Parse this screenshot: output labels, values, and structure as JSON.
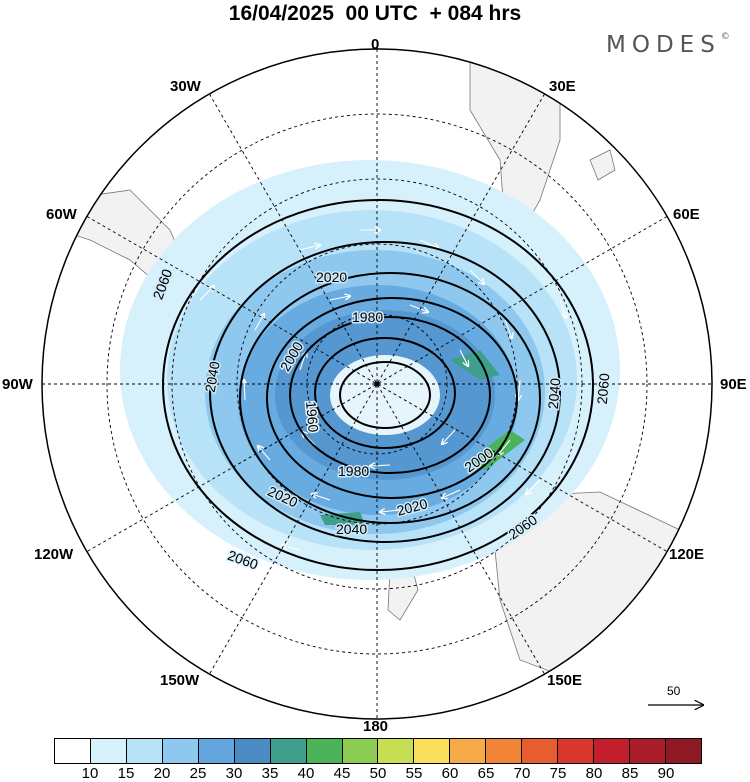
{
  "title": "16/04/2025  00 UTC  + 084 hrs",
  "brand": "MODES",
  "brand_mark": "©",
  "longitude_labels": {
    "lon_0": "0",
    "lon_30e": "30E",
    "lon_60e": "60E",
    "lon_90e": "90E",
    "lon_120e": "120E",
    "lon_150e": "150E",
    "lon_180": "180",
    "lon_150w": "150W",
    "lon_120w": "120W",
    "lon_90w": "90W",
    "lon_60w": "60W",
    "lon_30w": "30W"
  },
  "contour_labels": [
    "1980",
    "2000",
    "2020",
    "2040",
    "2060",
    "1960",
    "1980",
    "2000",
    "2020",
    "2040",
    "2060",
    "2020",
    "2040",
    "2060"
  ],
  "scale_vector_label": "50",
  "colorbar": {
    "ticks": [
      "10",
      "15",
      "20",
      "25",
      "30",
      "35",
      "40",
      "45",
      "50",
      "55",
      "60",
      "65",
      "70",
      "75",
      "80",
      "85",
      "90"
    ],
    "colors": [
      "#ffffff",
      "#d6f0fc",
      "#b8e2f8",
      "#8ec8ee",
      "#62a6dd",
      "#4a8bc4",
      "#3f9f8c",
      "#4bb45a",
      "#8ccc52",
      "#c6de52",
      "#f9df5a",
      "#f7ab48",
      "#f18436",
      "#e85d2f",
      "#d9372b",
      "#c11f2b",
      "#a91d29",
      "#8f1a24"
    ]
  }
}
